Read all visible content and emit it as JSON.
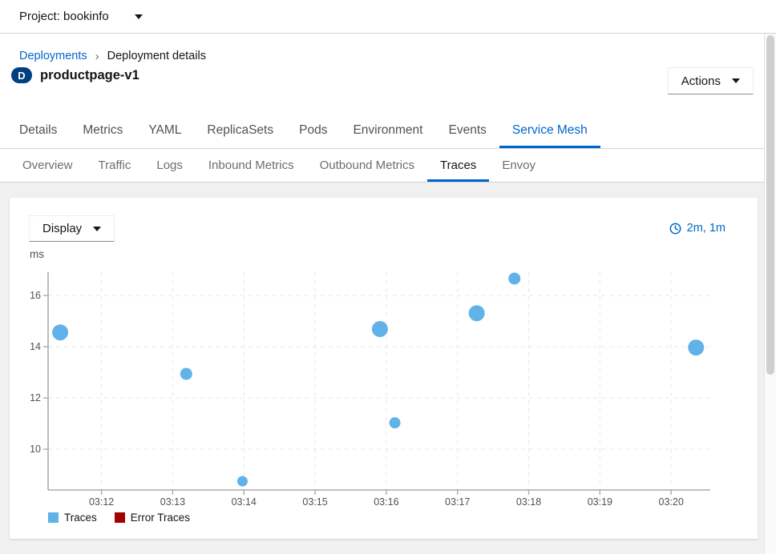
{
  "topbar": {
    "project_label": "Project: bookinfo"
  },
  "breadcrumb": {
    "items": [
      "Deployments",
      "Deployment details"
    ]
  },
  "header": {
    "badge": "D",
    "title": "productpage-v1",
    "actions_label": "Actions"
  },
  "tabs": {
    "active": "Service Mesh",
    "items": [
      "Details",
      "Metrics",
      "YAML",
      "ReplicaSets",
      "Pods",
      "Environment",
      "Events",
      "Service Mesh"
    ]
  },
  "subtabs": {
    "active": "Traces",
    "items": [
      "Overview",
      "Traffic",
      "Logs",
      "Inbound Metrics",
      "Outbound Metrics",
      "Traces",
      "Envoy"
    ]
  },
  "toolbar": {
    "display_label": "Display",
    "time_range_label": "2m, 1m"
  },
  "chart_data": {
    "type": "scatter",
    "title": "",
    "ylabel": "ms",
    "xlabel": "",
    "grid": "dashed",
    "legend_position": "bottom-left",
    "x_axis": {
      "tick_labels": [
        "03:12",
        "03:13",
        "03:14",
        "03:15",
        "03:16",
        "03:17",
        "03:18",
        "03:19",
        "03:20"
      ],
      "tick_minutes": [
        12,
        13,
        14,
        15,
        16,
        17,
        18,
        19,
        20
      ],
      "domain_minutes": [
        11.25,
        20.55
      ]
    },
    "y_axis": {
      "ticks": [
        10,
        12,
        14,
        16
      ],
      "domain_ms": [
        8.41,
        16.91
      ]
    },
    "series": [
      {
        "name": "Traces",
        "color": "#61b2e8",
        "points": [
          {
            "minute": 11.42,
            "ms": 14.56,
            "r": 10
          },
          {
            "minute": 13.19,
            "ms": 12.94,
            "r": 7.5
          },
          {
            "minute": 13.98,
            "ms": 8.75,
            "r": 6.5
          },
          {
            "minute": 15.91,
            "ms": 14.69,
            "r": 10
          },
          {
            "minute": 16.12,
            "ms": 11.03,
            "r": 7
          },
          {
            "minute": 17.27,
            "ms": 15.31,
            "r": 10
          },
          {
            "minute": 17.8,
            "ms": 16.66,
            "r": 7.5
          },
          {
            "minute": 20.35,
            "ms": 13.97,
            "r": 10
          }
        ]
      },
      {
        "name": "Error Traces",
        "color": "#a30000",
        "points": []
      }
    ]
  },
  "colors": {
    "accent": "#0066cc",
    "badge": "#004080",
    "trace_blue": "#61b2e8",
    "error_red": "#a30000"
  }
}
